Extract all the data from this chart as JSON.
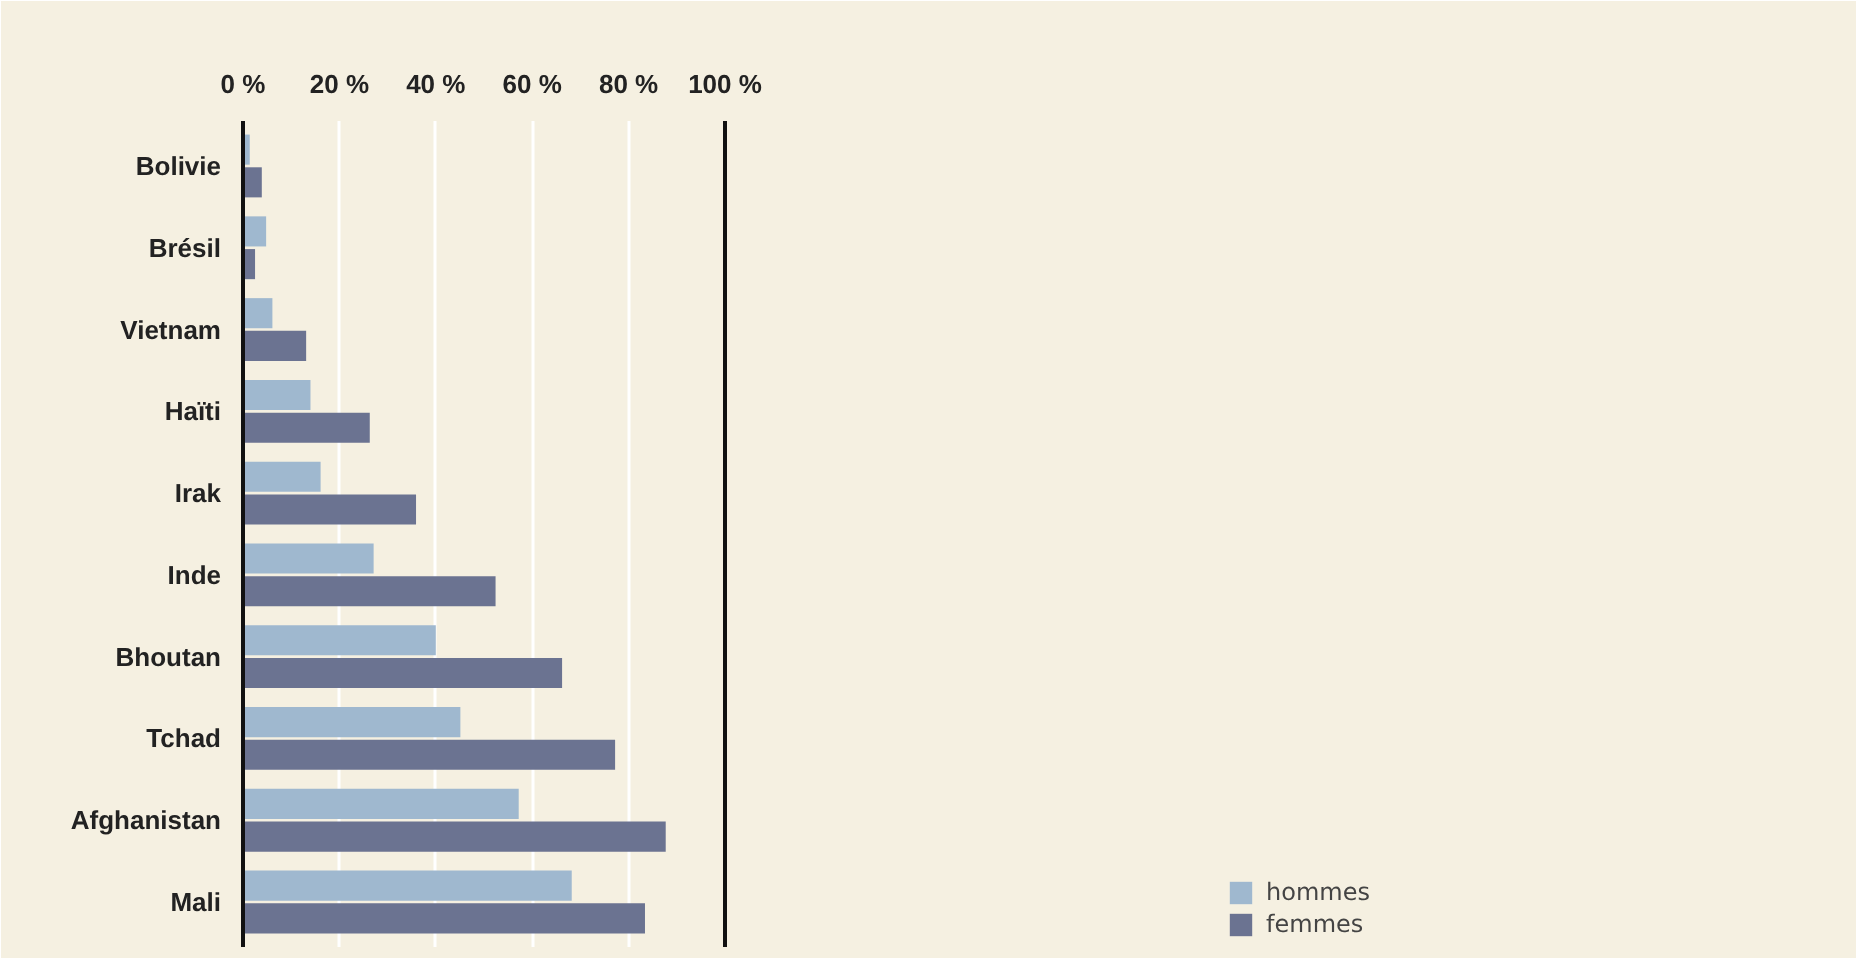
{
  "chart_data": {
    "type": "bar",
    "orientation": "horizontal",
    "categories": [
      "Bolivie",
      "Brésil",
      "Vietnam",
      "Haïti",
      "Irak",
      "Inde",
      "Bhoutan",
      "Tchad",
      "Afghanistan",
      "Mali"
    ],
    "series": [
      {
        "name": "hommes",
        "color": "#9fb8cf",
        "values": [
          1.4,
          4.8,
          6.1,
          14.0,
          16.1,
          27.1,
          40.0,
          45.1,
          57.2,
          68.2
        ]
      },
      {
        "name": "femmes",
        "color": "#6b7391",
        "values": [
          3.9,
          2.5,
          13.1,
          26.3,
          35.9,
          52.4,
          66.2,
          77.2,
          87.7,
          83.4
        ]
      }
    ],
    "xlim": [
      0,
      100
    ],
    "xticks": [
      {
        "value": 0,
        "label": "0 %"
      },
      {
        "value": 20,
        "label": "20 %"
      },
      {
        "value": 40,
        "label": "40 %"
      },
      {
        "value": 60,
        "label": "60 %"
      },
      {
        "value": 80,
        "label": "80 %"
      },
      {
        "value": 100,
        "label": "100 %"
      }
    ],
    "grid": "x",
    "legend": "bottom right"
  }
}
